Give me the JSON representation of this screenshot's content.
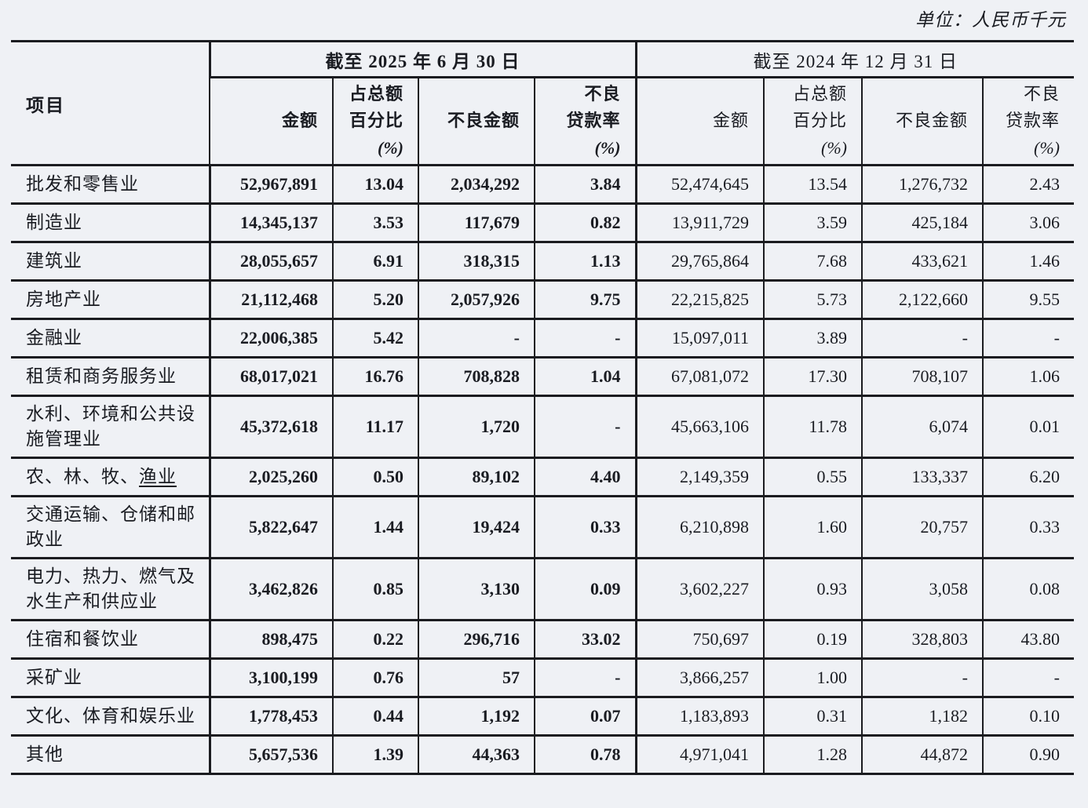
{
  "page": {
    "unit_note": "单位：人民币千元"
  },
  "colors": {
    "background": "#eff1f5",
    "border": "#1b1c20",
    "text": "#1a1c22"
  },
  "table": {
    "corner_header": "项目",
    "groups": [
      {
        "key": "2025-06-30",
        "label": "截至 2025 年 6 月 30 日",
        "bold": true
      },
      {
        "key": "2024-12-31",
        "label": "截至 2024 年 12 月 31 日",
        "bold": false
      }
    ],
    "columns": [
      {
        "key": "amount",
        "lines": [
          "金额"
        ]
      },
      {
        "key": "share-of-total",
        "lines": [
          "占总额",
          "百分比",
          "(%)"
        ]
      },
      {
        "key": "npl-amount",
        "lines": [
          "不良金额"
        ]
      },
      {
        "key": "npl-ratio",
        "lines": [
          "不良",
          "贷款率",
          "(%)"
        ]
      }
    ],
    "rows": [
      {
        "label": [
          {
            "text": "批发和零售业"
          }
        ],
        "values_2025": [
          "52,967,891",
          "13.04",
          "2,034,292",
          "3.84"
        ],
        "values_2024": [
          "52,474,645",
          "13.54",
          "1,276,732",
          "2.43"
        ]
      },
      {
        "label": [
          {
            "text": "制造业"
          }
        ],
        "values_2025": [
          "14,345,137",
          "3.53",
          "117,679",
          "0.82"
        ],
        "values_2024": [
          "13,911,729",
          "3.59",
          "425,184",
          "3.06"
        ]
      },
      {
        "label": [
          {
            "text": "建筑业"
          }
        ],
        "values_2025": [
          "28,055,657",
          "6.91",
          "318,315",
          "1.13"
        ],
        "values_2024": [
          "29,765,864",
          "7.68",
          "433,621",
          "1.46"
        ]
      },
      {
        "label": [
          {
            "text": "房地产业"
          }
        ],
        "values_2025": [
          "21,112,468",
          "5.20",
          "2,057,926",
          "9.75"
        ],
        "values_2024": [
          "22,215,825",
          "5.73",
          "2,122,660",
          "9.55"
        ]
      },
      {
        "label": [
          {
            "text": "金融业"
          }
        ],
        "values_2025": [
          "22,006,385",
          "5.42",
          "-",
          "-"
        ],
        "values_2024": [
          "15,097,011",
          "3.89",
          "-",
          "-"
        ]
      },
      {
        "label": [
          {
            "text": "租赁和商务服务业"
          }
        ],
        "values_2025": [
          "68,017,021",
          "16.76",
          "708,828",
          "1.04"
        ],
        "values_2024": [
          "67,081,072",
          "17.30",
          "708,107",
          "1.06"
        ]
      },
      {
        "label": [
          {
            "text": "水利、环境和公共设\n施管理业"
          }
        ],
        "tall": true,
        "values_2025": [
          "45,372,618",
          "11.17",
          "1,720",
          "-"
        ],
        "values_2024": [
          "45,663,106",
          "11.78",
          "6,074",
          "0.01"
        ]
      },
      {
        "label": [
          {
            "text": "农、林、牧、"
          },
          {
            "text": "渔业",
            "underline": true
          }
        ],
        "values_2025": [
          "2,025,260",
          "0.50",
          "89,102",
          "4.40"
        ],
        "values_2024": [
          "2,149,359",
          "0.55",
          "133,337",
          "6.20"
        ]
      },
      {
        "label": [
          {
            "text": "交通运输、仓储和邮\n政业"
          }
        ],
        "tall": true,
        "values_2025": [
          "5,822,647",
          "1.44",
          "19,424",
          "0.33"
        ],
        "values_2024": [
          "6,210,898",
          "1.60",
          "20,757",
          "0.33"
        ]
      },
      {
        "label": [
          {
            "text": "电力、热力、燃气及\n水生产和供应业"
          }
        ],
        "tall": true,
        "values_2025": [
          "3,462,826",
          "0.85",
          "3,130",
          "0.09"
        ],
        "values_2024": [
          "3,602,227",
          "0.93",
          "3,058",
          "0.08"
        ]
      },
      {
        "label": [
          {
            "text": "住宿和餐饮业"
          }
        ],
        "values_2025": [
          "898,475",
          "0.22",
          "296,716",
          "33.02"
        ],
        "values_2024": [
          "750,697",
          "0.19",
          "328,803",
          "43.80"
        ]
      },
      {
        "label": [
          {
            "text": "采矿业"
          }
        ],
        "values_2025": [
          "3,100,199",
          "0.76",
          "57",
          "-"
        ],
        "values_2024": [
          "3,866,257",
          "1.00",
          "-",
          "-"
        ]
      },
      {
        "label": [
          {
            "text": "文化、体育和娱乐业"
          }
        ],
        "values_2025": [
          "1,778,453",
          "0.44",
          "1,192",
          "0.07"
        ],
        "values_2024": [
          "1,183,893",
          "0.31",
          "1,182",
          "0.10"
        ]
      },
      {
        "label": [
          {
            "text": "其他"
          }
        ],
        "values_2025": [
          "5,657,536",
          "1.39",
          "44,363",
          "0.78"
        ],
        "values_2024": [
          "4,971,041",
          "1.28",
          "44,872",
          "0.90"
        ]
      }
    ]
  }
}
